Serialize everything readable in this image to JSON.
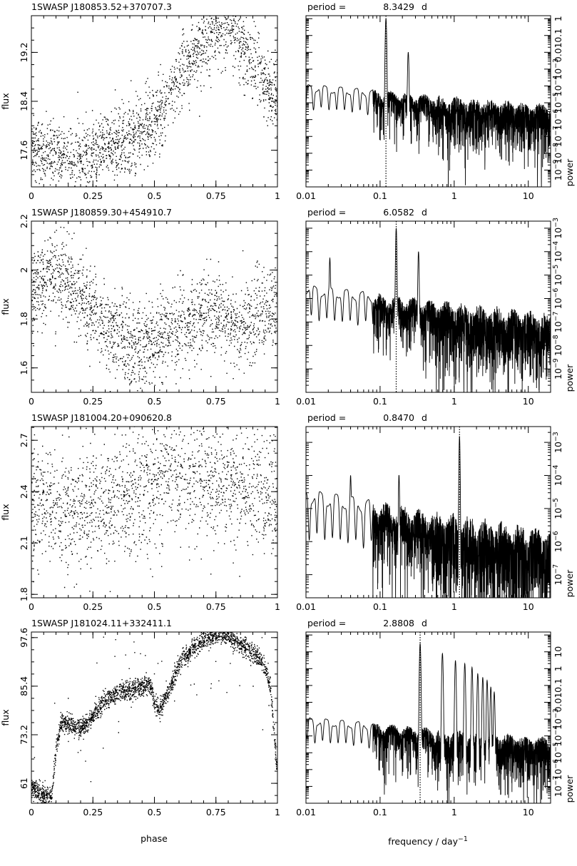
{
  "figure": {
    "phase_xlabel": "phase",
    "freq_xlabel": "frequency / day",
    "freq_xlabel_sup": "−1",
    "flux_ylabel": "flux",
    "power_ylabel": "power",
    "period_prefix": "period =",
    "period_unit": "d"
  },
  "chart_data": [
    {
      "type": "scatter",
      "title": "1SWASP J180853.52+370707.3",
      "xlabel": "phase",
      "ylabel": "flux",
      "xlim": [
        0,
        1
      ],
      "ylim": [
        17.0,
        19.8
      ],
      "xticks": [
        "0",
        "0.25",
        "0.5",
        "0.75",
        "1"
      ],
      "yticks": [
        17.6,
        18.4,
        19.2
      ],
      "curve_x": [
        0,
        0.05,
        0.1,
        0.15,
        0.2,
        0.25,
        0.3,
        0.35,
        0.4,
        0.45,
        0.5,
        0.55,
        0.6,
        0.65,
        0.7,
        0.75,
        0.8,
        0.85,
        0.9,
        0.95,
        1.0
      ],
      "curve_y": [
        17.75,
        17.55,
        17.5,
        17.45,
        17.45,
        17.5,
        17.6,
        17.7,
        17.8,
        17.95,
        18.1,
        18.4,
        18.8,
        19.1,
        19.4,
        19.6,
        19.65,
        19.35,
        19.0,
        18.6,
        18.4
      ],
      "scatter": 0.4,
      "n_points": 2000
    },
    {
      "type": "line",
      "title": "period = 8.3429 d",
      "period": "8.3429",
      "xlabel": "frequency / day^-1",
      "ylabel": "power",
      "xscale": "log",
      "yscale": "log",
      "xlim": [
        0.01,
        20
      ],
      "ylim": [
        1e-10,
        1.5
      ],
      "xticks": [
        "0.01",
        "0.1",
        "1",
        "10"
      ],
      "yticks": [
        "10^-9",
        "10^-8",
        "10^-7",
        "10^-6",
        "10^-5",
        "10^-4",
        "10^-3",
        "0.01",
        "0.1",
        "1"
      ],
      "peak_frequency": 0.12,
      "peaks": [
        [
          0.12,
          1.0
        ],
        [
          0.24,
          0.01
        ]
      ],
      "floor_at_1": 1e-05
    },
    {
      "type": "scatter",
      "title": "1SWASP J180859.30+454910.7",
      "xlabel": "phase",
      "ylabel": "flux",
      "xlim": [
        0,
        1
      ],
      "ylim": [
        1.5,
        2.2
      ],
      "xticks": [
        "0",
        "0.25",
        "0.5",
        "0.75",
        "1"
      ],
      "yticks": [
        1.6,
        1.8,
        2.0,
        2.2
      ],
      "curve_x": [
        0,
        0.05,
        0.1,
        0.15,
        0.2,
        0.25,
        0.3,
        0.35,
        0.4,
        0.45,
        0.5,
        0.55,
        0.6,
        0.65,
        0.7,
        0.75,
        0.8,
        0.85,
        0.9,
        0.95,
        1.0
      ],
      "curve_y": [
        1.9,
        1.97,
        2.0,
        1.95,
        1.9,
        1.82,
        1.77,
        1.73,
        1.7,
        1.68,
        1.7,
        1.73,
        1.76,
        1.8,
        1.83,
        1.83,
        1.78,
        1.76,
        1.8,
        1.83,
        1.85
      ],
      "scatter": 0.12,
      "n_points": 2000
    },
    {
      "type": "line",
      "title": "period = 6.0582 d",
      "period": "6.0582",
      "xlabel": "frequency / day^-1",
      "ylabel": "power",
      "xscale": "log",
      "yscale": "log",
      "xlim": [
        0.01,
        20
      ],
      "ylim": [
        1e-10,
        0.002
      ],
      "xticks": [
        "0.01",
        "0.1",
        "1",
        "10"
      ],
      "yticks": [
        "10^-9",
        "10^-8",
        "10^-7",
        "10^-6",
        "10^-5",
        "10^-4",
        "10^-3"
      ],
      "peak_frequency": 0.165,
      "peaks": [
        [
          0.165,
          0.001
        ],
        [
          0.33,
          0.0001
        ],
        [
          0.021,
          5e-05
        ]
      ],
      "floor_at_1": 3e-07
    },
    {
      "type": "scatter",
      "title": "1SWASP J181004.20+090620.8",
      "xlabel": "phase",
      "ylabel": "flux",
      "xlim": [
        0,
        1
      ],
      "ylim": [
        1.78,
        2.78
      ],
      "xticks": [
        "0",
        "0.25",
        "0.5",
        "0.75",
        "1"
      ],
      "yticks": [
        1.8,
        2.1,
        2.4,
        2.7
      ],
      "curve_x": [
        0,
        0.1,
        0.2,
        0.3,
        0.4,
        0.5,
        0.6,
        0.7,
        0.8,
        0.9,
        1.0
      ],
      "curve_y": [
        2.33,
        2.31,
        2.3,
        2.33,
        2.38,
        2.45,
        2.5,
        2.48,
        2.44,
        2.4,
        2.38
      ],
      "scatter": 0.25,
      "n_points": 1800
    },
    {
      "type": "line",
      "title": "period = 0.8470 d",
      "period": "0.8470",
      "xlabel": "frequency / day^-1",
      "ylabel": "power",
      "xscale": "log",
      "yscale": "log",
      "xlim": [
        0.01,
        20
      ],
      "ylim": [
        2e-08,
        0.003
      ],
      "xticks": [
        "0.01",
        "0.1",
        "1",
        "10"
      ],
      "yticks": [
        "10^-7",
        "10^-6",
        "10^-5",
        "10^-4",
        "10^-3"
      ],
      "peak_frequency": 1.18,
      "peaks": [
        [
          1.18,
          0.0015
        ],
        [
          0.18,
          0.0001
        ],
        [
          0.04,
          8e-05
        ]
      ],
      "floor_at_1": 3e-06
    },
    {
      "type": "scatter",
      "title": "1SWASP J181024.11+332411.1",
      "xlabel": "phase",
      "ylabel": "flux",
      "xlim": [
        0,
        1
      ],
      "ylim": [
        56,
        99
      ],
      "xticks": [
        "0",
        "0.25",
        "0.5",
        "0.75",
        "1"
      ],
      "yticks": [
        61,
        73.2,
        85.4,
        97.6
      ],
      "curve_x": [
        0,
        0.03,
        0.06,
        0.08,
        0.1,
        0.12,
        0.15,
        0.2,
        0.25,
        0.3,
        0.35,
        0.4,
        0.45,
        0.48,
        0.5,
        0.52,
        0.55,
        0.6,
        0.65,
        0.7,
        0.75,
        0.8,
        0.85,
        0.9,
        0.95,
        0.97,
        0.99,
        1.0
      ],
      "curve_y": [
        60,
        58.5,
        57.8,
        58,
        70,
        77,
        76,
        75,
        78,
        82,
        84,
        84.5,
        85.5,
        86,
        81,
        79.5,
        83,
        91,
        95,
        97,
        98.5,
        98,
        96,
        94,
        90,
        85,
        70,
        60
      ],
      "scatter": 1.2,
      "n_points": 2600
    },
    {
      "type": "line",
      "title": "period = 2.8808 d",
      "period": "2.8808",
      "xlabel": "frequency / day^-1",
      "ylabel": "power",
      "xscale": "log",
      "yscale": "log",
      "xlim": [
        0.01,
        20
      ],
      "ylim": [
        1e-08,
        150
      ],
      "xticks": [
        "0.01",
        "0.1",
        "1",
        "10"
      ],
      "yticks": [
        "10^-7",
        "10^-6",
        "10^-5",
        "10^-4",
        "10^-3",
        "0.01",
        "0.1",
        "1",
        "10"
      ],
      "peak_frequency": 0.347,
      "peaks": [
        [
          0.347,
          30
        ],
        [
          0.694,
          8
        ],
        [
          1.04,
          3
        ],
        [
          1.39,
          2
        ],
        [
          1.74,
          1.2
        ],
        [
          2.08,
          0.5
        ],
        [
          2.43,
          0.3
        ],
        [
          2.78,
          0.2
        ],
        [
          3.12,
          0.08
        ],
        [
          3.47,
          0.04
        ]
      ],
      "floor_at_1": 0.0001
    }
  ]
}
